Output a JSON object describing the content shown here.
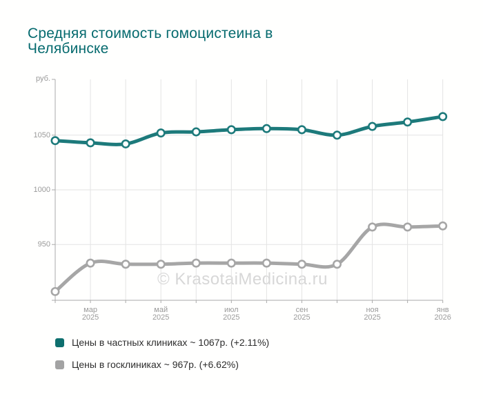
{
  "title": {
    "lines": [
      "Средняя стоимость гомоцистеина в",
      "Челябинске"
    ],
    "color": "#056a6e"
  },
  "watermark": "© KrasotaiMedicina.ru",
  "chart_data": {
    "type": "line",
    "title": "Средняя стоимость гомоцистеина в Челябинске",
    "ylabel": "руб.",
    "xlabel": "",
    "ylim": [
      899,
      1101
    ],
    "y_ticks": [
      950,
      1000,
      1050
    ],
    "grid": true,
    "legend_position": "bottom",
    "x_point_count": 12,
    "x_ticks": [
      {
        "index": 1,
        "month": "мар",
        "year": "2025"
      },
      {
        "index": 3,
        "month": "май",
        "year": "2025"
      },
      {
        "index": 5,
        "month": "июл",
        "year": "2025"
      },
      {
        "index": 7,
        "month": "сен",
        "year": "2025"
      },
      {
        "index": 9,
        "month": "ноя",
        "year": "2025"
      },
      {
        "index": 11,
        "month": "янв",
        "year": "2026"
      }
    ],
    "series": [
      {
        "name": "private-clinics",
        "color": "#1d7a7b",
        "marker": "circle",
        "values": [
          1045,
          1043,
          1042,
          1052,
          1053,
          1055,
          1056,
          1055,
          1050,
          1058,
          1062,
          1067
        ]
      },
      {
        "name": "state-clinics",
        "color": "#a6a6a6",
        "marker": "circle",
        "values": [
          907,
          933,
          932,
          932,
          933,
          933,
          933,
          932,
          932,
          966,
          966,
          967
        ]
      }
    ],
    "colors": {
      "grid": "#e3e3e3",
      "axis": "#a9a9a9",
      "tick_text": "#9a9a9a",
      "watermark": "#d7d7d7",
      "legend_text": "#2d2d2d",
      "marker_fill": "#ffffff"
    }
  },
  "legend": {
    "items": [
      {
        "label": "Цены в частных клиниках ~ 1067р. (+2.11%)",
        "color": "#0e6f6e"
      },
      {
        "label": "Цены в госклиниках ~ 967р. (+6.62%)",
        "color": "#a3a3a3"
      }
    ]
  }
}
